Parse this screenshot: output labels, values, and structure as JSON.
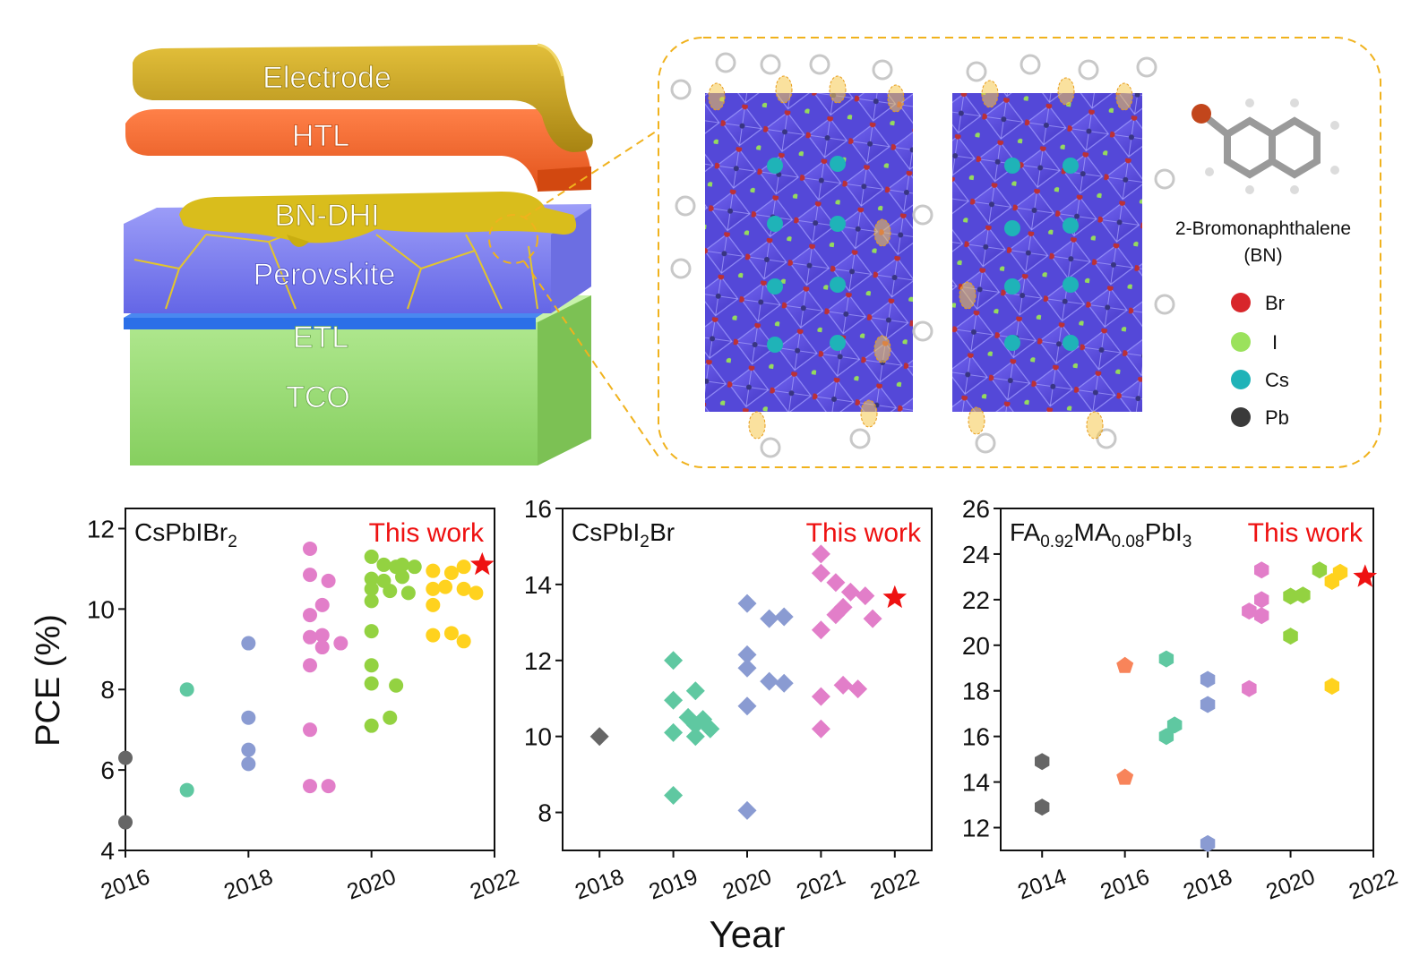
{
  "stack": {
    "layers": [
      {
        "label": "Electrode",
        "color": "#c9a526"
      },
      {
        "label": "HTL",
        "color": "#f36a2c"
      },
      {
        "label": "BN-DHI",
        "color": "#d7bb1c"
      },
      {
        "label": "Perovskite",
        "color": "#7d7ff2"
      },
      {
        "label": "ETL",
        "color": "#2a6ee6"
      },
      {
        "label": "TCO",
        "color": "#9fe07a"
      }
    ]
  },
  "molecule": {
    "name": "2-Bromonaphthalene",
    "abbrev": "(BN)"
  },
  "legend": [
    {
      "label": "Br",
      "color": "#d8262b"
    },
    {
      "label": "I",
      "color": "#9be25c"
    },
    {
      "label": "Cs",
      "color": "#1fb3b8"
    },
    {
      "label": "Pb",
      "color": "#3a3a3a"
    }
  ],
  "shared": {
    "ylabel": "PCE (%)",
    "xlabel": "Year",
    "this_work": "This work",
    "this_work_color": "#ee1111"
  },
  "chart_data": [
    {
      "type": "scatter",
      "title_parts": [
        [
          "CsPbIBr",
          ""
        ],
        [
          "2",
          "sub"
        ]
      ],
      "xlim": [
        2016,
        2022
      ],
      "ylim": [
        4,
        12.5
      ],
      "xticks": [
        2016,
        2018,
        2020,
        2022
      ],
      "yticks": [
        4,
        6,
        8,
        10,
        12
      ],
      "marker": "circle",
      "series": [
        {
          "color": "#666666",
          "points": [
            [
              2016,
              6.3
            ],
            [
              2016,
              4.7
            ]
          ]
        },
        {
          "color": "#5fc8a1",
          "points": [
            [
              2017,
              8.0
            ],
            [
              2017,
              5.5
            ]
          ]
        },
        {
          "color": "#8a9bd2",
          "points": [
            [
              2018,
              9.15
            ],
            [
              2018,
              7.3
            ],
            [
              2018,
              6.5
            ],
            [
              2018,
              6.15
            ]
          ]
        },
        {
          "color": "#e27ec9",
          "points": [
            [
              2019,
              11.5
            ],
            [
              2019,
              10.85
            ],
            [
              2019.3,
              10.7
            ],
            [
              2019.2,
              10.1
            ],
            [
              2019,
              9.85
            ],
            [
              2019.2,
              9.35
            ],
            [
              2019,
              9.3
            ],
            [
              2019.2,
              9.05
            ],
            [
              2019.5,
              9.15
            ],
            [
              2019,
              8.6
            ],
            [
              2019,
              7.0
            ],
            [
              2019,
              5.6
            ],
            [
              2019.3,
              5.6
            ]
          ]
        },
        {
          "color": "#93d241",
          "points": [
            [
              2020,
              11.3
            ],
            [
              2020.2,
              11.1
            ],
            [
              2020.4,
              11.05
            ],
            [
              2020.5,
              11.1
            ],
            [
              2020.7,
              11.05
            ],
            [
              2020,
              10.75
            ],
            [
              2020.2,
              10.7
            ],
            [
              2020.5,
              10.8
            ],
            [
              2020,
              10.5
            ],
            [
              2020.3,
              10.45
            ],
            [
              2020.6,
              10.4
            ],
            [
              2020,
              10.2
            ],
            [
              2020,
              9.45
            ],
            [
              2020,
              8.6
            ],
            [
              2020,
              8.15
            ],
            [
              2020.4,
              8.1
            ],
            [
              2020.3,
              7.3
            ],
            [
              2020,
              7.1
            ]
          ]
        },
        {
          "color": "#ffd21e",
          "points": [
            [
              2021,
              10.95
            ],
            [
              2021.3,
              10.9
            ],
            [
              2021.5,
              11.05
            ],
            [
              2021,
              10.5
            ],
            [
              2021.2,
              10.55
            ],
            [
              2021.5,
              10.5
            ],
            [
              2021.7,
              10.4
            ],
            [
              2021,
              10.1
            ],
            [
              2021,
              9.35
            ],
            [
              2021.3,
              9.4
            ],
            [
              2021.5,
              9.2
            ]
          ]
        }
      ],
      "this_work": [
        2021.8,
        11.1
      ]
    },
    {
      "type": "scatter",
      "title_parts": [
        [
          "CsPbI",
          ""
        ],
        [
          "2",
          "sub"
        ],
        [
          "Br",
          ""
        ]
      ],
      "xlim": [
        2017.5,
        2022.5
      ],
      "ylim": [
        7,
        16
      ],
      "xticks": [
        2018,
        2019,
        2020,
        2021,
        2022
      ],
      "yticks": [
        8,
        10,
        12,
        14,
        16
      ],
      "marker": "diamond",
      "series": [
        {
          "color": "#666666",
          "points": [
            [
              2018,
              10.0
            ]
          ]
        },
        {
          "color": "#5fc8a1",
          "points": [
            [
              2019,
              12.0
            ],
            [
              2019.3,
              11.2
            ],
            [
              2019,
              10.95
            ],
            [
              2019.2,
              10.5
            ],
            [
              2019.4,
              10.45
            ],
            [
              2019.3,
              10.3
            ],
            [
              2019,
              10.1
            ],
            [
              2019.5,
              10.2
            ],
            [
              2019.3,
              10.0
            ],
            [
              2019,
              8.45
            ]
          ]
        },
        {
          "color": "#8a9bd2",
          "points": [
            [
              2020,
              13.5
            ],
            [
              2020,
              12.15
            ],
            [
              2020,
              11.8
            ],
            [
              2020.3,
              13.1
            ],
            [
              2020.5,
              13.15
            ],
            [
              2020.3,
              11.45
            ],
            [
              2020.5,
              11.4
            ],
            [
              2020,
              10.8
            ],
            [
              2020,
              8.05
            ]
          ]
        },
        {
          "color": "#e27ec9",
          "points": [
            [
              2021,
              14.8
            ],
            [
              2021,
              14.3
            ],
            [
              2021.2,
              14.05
            ],
            [
              2021.4,
              13.8
            ],
            [
              2021.6,
              13.7
            ],
            [
              2021.3,
              13.4
            ],
            [
              2021.2,
              13.2
            ],
            [
              2021.7,
              13.1
            ],
            [
              2021,
              12.8
            ],
            [
              2021.3,
              11.35
            ],
            [
              2021.5,
              11.25
            ],
            [
              2021,
              11.05
            ],
            [
              2021,
              10.2
            ]
          ]
        }
      ],
      "this_work": [
        2022,
        13.65
      ]
    },
    {
      "type": "scatter",
      "title_parts": [
        [
          "FA",
          ""
        ],
        [
          "0.92",
          "sub"
        ],
        [
          "MA",
          ""
        ],
        [
          "0.08",
          "sub"
        ],
        [
          "PbI",
          ""
        ],
        [
          "3",
          "sub"
        ]
      ],
      "xlim": [
        2013,
        2022
      ],
      "ylim": [
        11,
        26
      ],
      "xticks": [
        2014,
        2016,
        2018,
        2020,
        2022
      ],
      "yticks": [
        12,
        14,
        16,
        18,
        20,
        22,
        24,
        26
      ],
      "marker": "hexagon",
      "series": [
        {
          "color": "#666666",
          "points": [
            [
              2014,
              14.9
            ],
            [
              2014,
              12.9
            ]
          ],
          "marker": "hexagon"
        },
        {
          "color": "#f8845a",
          "points": [
            [
              2016,
              19.1
            ],
            [
              2016,
              14.2
            ]
          ],
          "marker": "pentagon"
        },
        {
          "color": "#5fc8a1",
          "points": [
            [
              2017,
              19.4
            ],
            [
              2017.2,
              16.5
            ],
            [
              2017,
              16.0
            ]
          ],
          "marker": "hexagon"
        },
        {
          "color": "#8a9bd2",
          "points": [
            [
              2018,
              18.5
            ],
            [
              2018,
              17.4
            ],
            [
              2018,
              11.3
            ]
          ],
          "marker": "hexagon"
        },
        {
          "color": "#e27ec9",
          "points": [
            [
              2019.3,
              23.3
            ],
            [
              2019.3,
              22.0
            ],
            [
              2019,
              21.5
            ],
            [
              2019.3,
              21.3
            ],
            [
              2019,
              18.1
            ]
          ],
          "marker": "hexagon"
        },
        {
          "color": "#93d241",
          "points": [
            [
              2020.7,
              23.3
            ],
            [
              2020,
              22.15
            ],
            [
              2020.3,
              22.2
            ],
            [
              2020,
              20.4
            ]
          ],
          "marker": "hexagon"
        },
        {
          "color": "#ffd21e",
          "points": [
            [
              2021.2,
              23.2
            ],
            [
              2021,
              22.8
            ],
            [
              2021,
              18.2
            ]
          ],
          "marker": "hexagon"
        }
      ],
      "this_work": [
        2021.8,
        23.0
      ]
    }
  ]
}
